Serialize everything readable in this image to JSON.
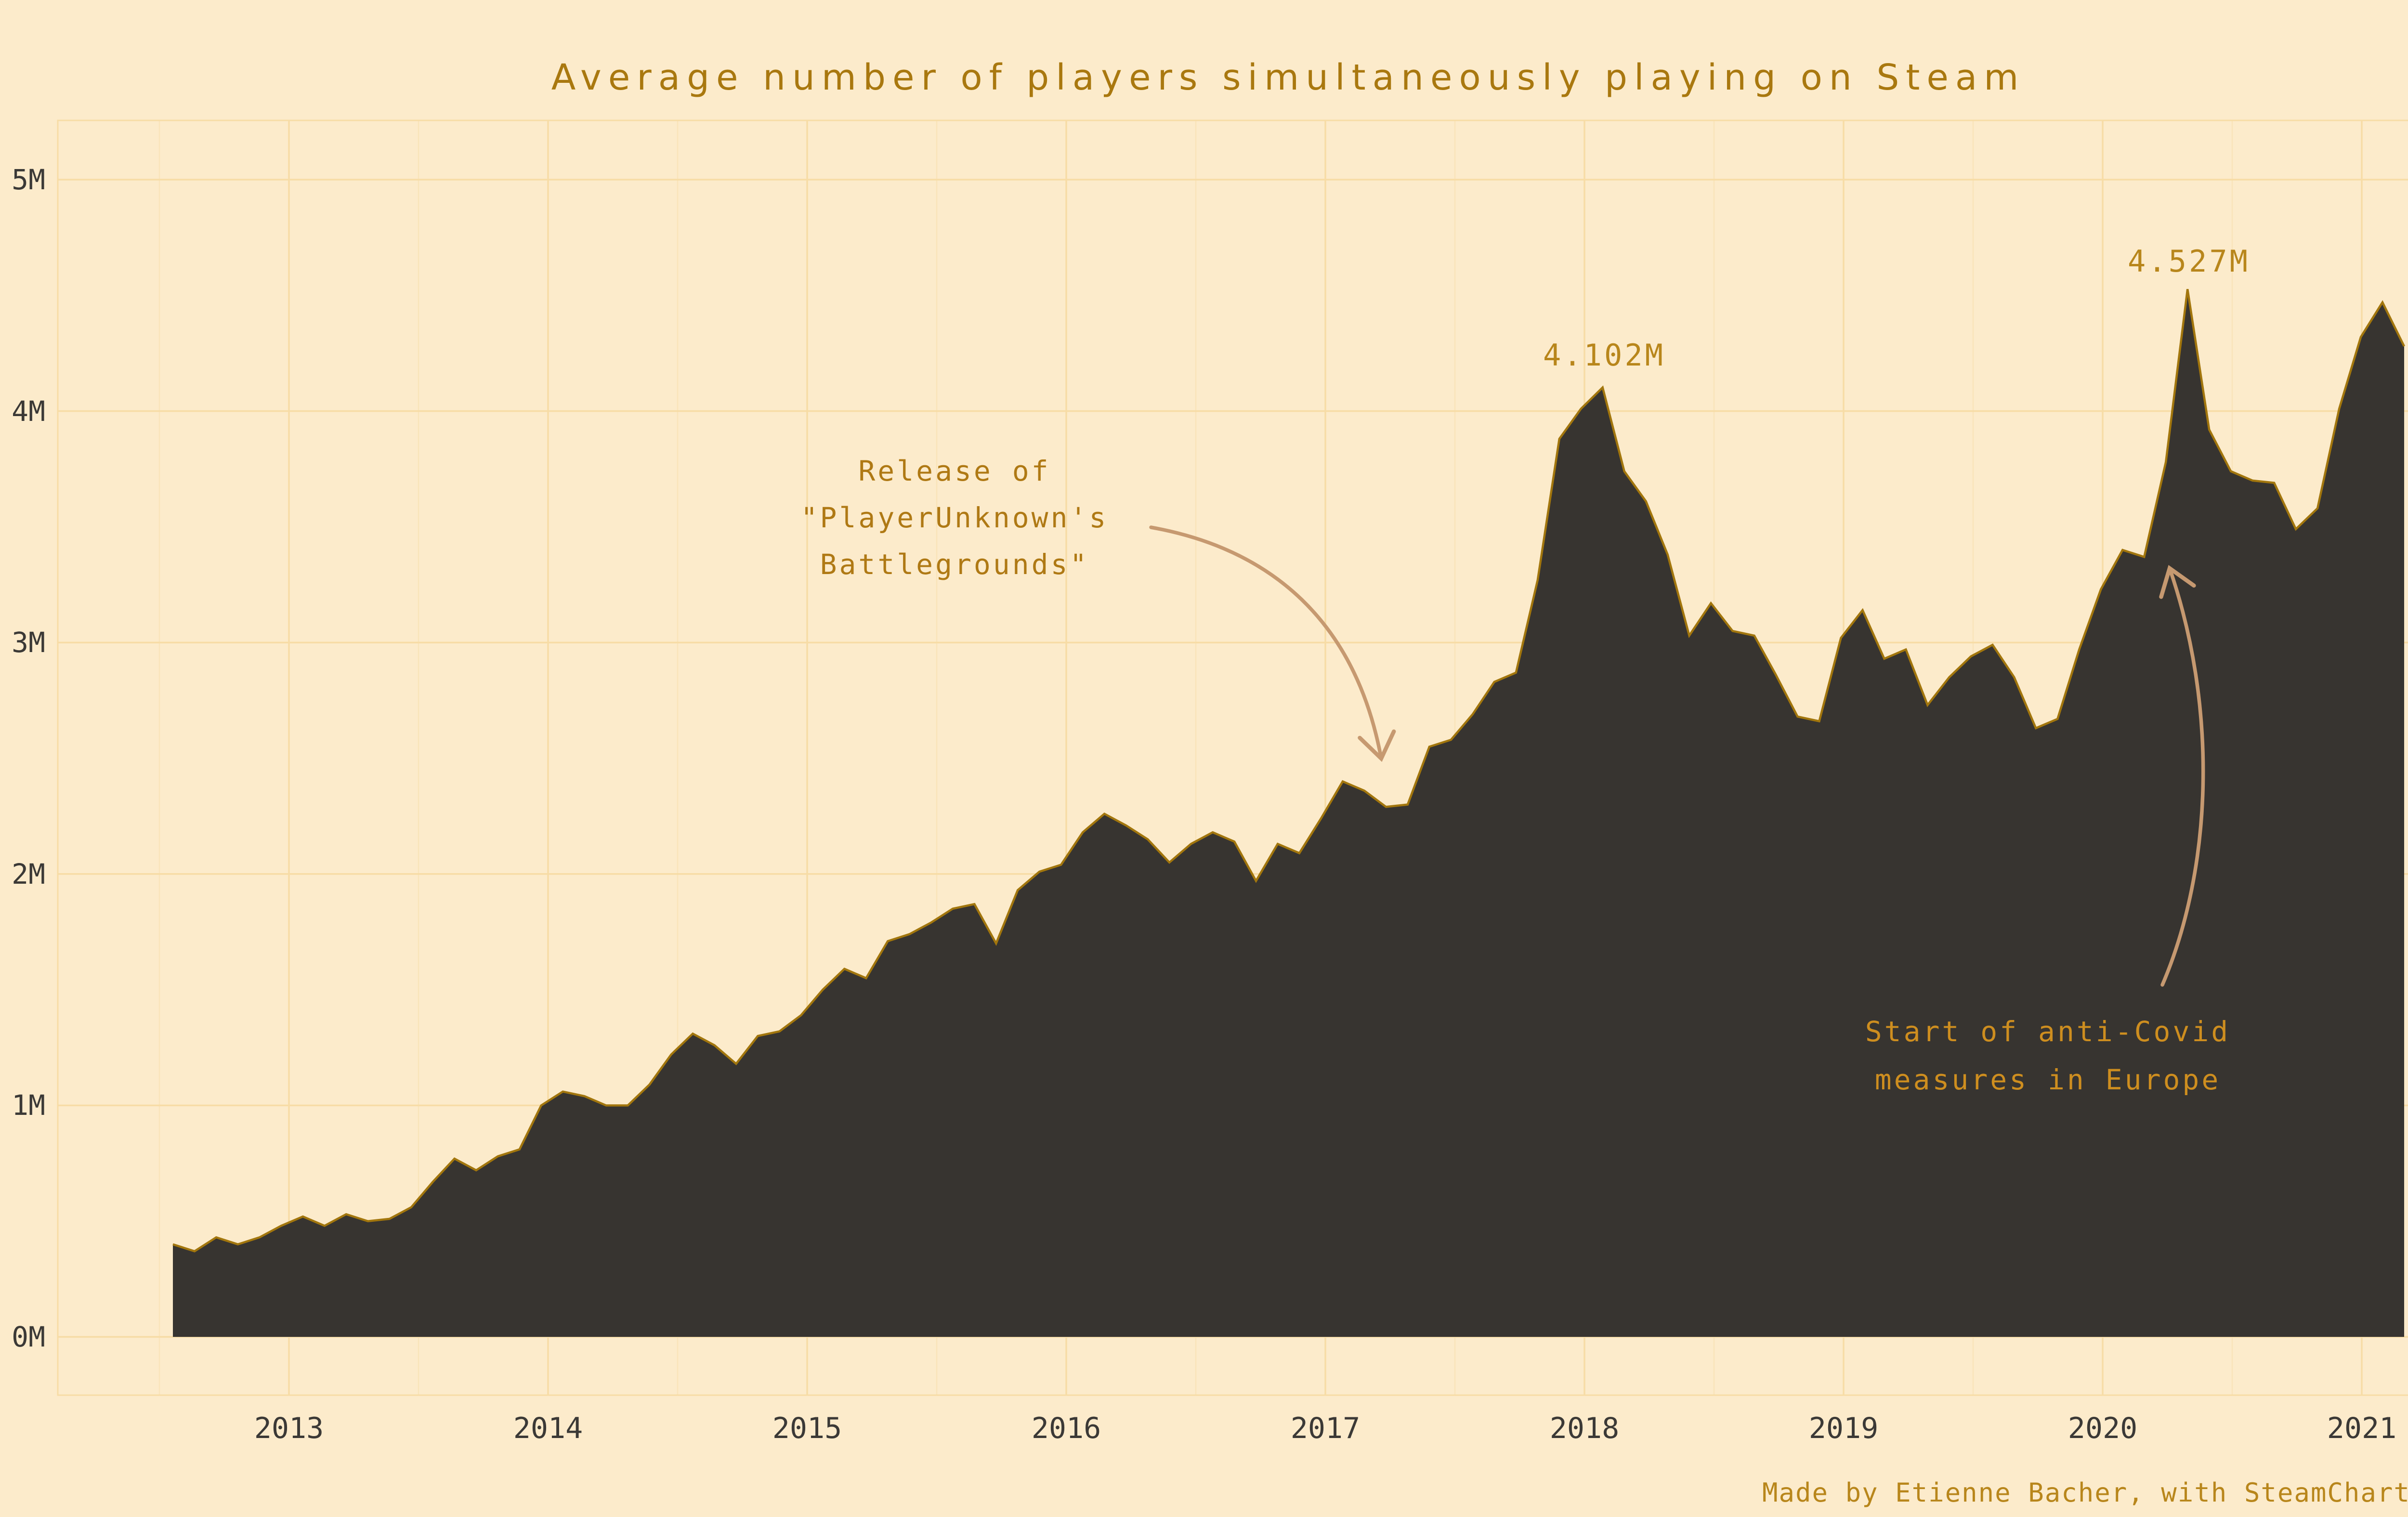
{
  "title": "Average number of players simultaneously playing on Steam",
  "credit": "Made by Etienne Bacher, with SteamCharts data",
  "colors": {
    "background": "#FCEBCB",
    "gridline": "#F7DCA6",
    "area_fill": "#373430",
    "area_outline": "#A2760D",
    "title_text": "#A9780F",
    "tick_text": "#3B3936",
    "gold_label": "#B8861B",
    "covid_label": "#CE8E1F",
    "arrow": "#C69970"
  },
  "annotations": {
    "pubg": {
      "lines": [
        "Release of",
        "\"PlayerUnknown's",
        "Battlegrounds\""
      ]
    },
    "covid": {
      "lines": [
        "Start of anti-Covid",
        "measures in Europe"
      ]
    },
    "peak_2018": "4.102M",
    "peak_2020": "4.527M"
  },
  "chart_data": {
    "type": "area",
    "title": "Average number of players simultaneously playing on Steam",
    "xlabel": "",
    "ylabel": "",
    "ylim": [
      0,
      5
    ],
    "grid": true,
    "legend_position": "none",
    "yticks": [
      "0M",
      "1M",
      "2M",
      "3M",
      "4M",
      "5M"
    ],
    "xticks": [
      "2013",
      "2014",
      "2015",
      "2016",
      "2017",
      "2018",
      "2019",
      "2020",
      "2021"
    ],
    "series_name": "Average simultaneous Steam players (millions)",
    "x": [
      "2012-07",
      "2012-08",
      "2012-09",
      "2012-10",
      "2012-11",
      "2012-12",
      "2013-01",
      "2013-02",
      "2013-03",
      "2013-04",
      "2013-05",
      "2013-06",
      "2013-07",
      "2013-08",
      "2013-09",
      "2013-10",
      "2013-11",
      "2013-12",
      "2014-01",
      "2014-02",
      "2014-03",
      "2014-04",
      "2014-05",
      "2014-06",
      "2014-07",
      "2014-08",
      "2014-09",
      "2014-10",
      "2014-11",
      "2014-12",
      "2015-01",
      "2015-02",
      "2015-03",
      "2015-04",
      "2015-05",
      "2015-06",
      "2015-07",
      "2015-08",
      "2015-09",
      "2015-10",
      "2015-11",
      "2015-12",
      "2016-01",
      "2016-02",
      "2016-03",
      "2016-04",
      "2016-05",
      "2016-06",
      "2016-07",
      "2016-08",
      "2016-09",
      "2016-10",
      "2016-11",
      "2016-12",
      "2017-01",
      "2017-02",
      "2017-03",
      "2017-04",
      "2017-05",
      "2017-06",
      "2017-07",
      "2017-08",
      "2017-09",
      "2017-10",
      "2017-11",
      "2017-12",
      "2018-01",
      "2018-02",
      "2018-03",
      "2018-04",
      "2018-05",
      "2018-06",
      "2018-07",
      "2018-08",
      "2018-09",
      "2018-10",
      "2018-11",
      "2018-12",
      "2019-01",
      "2019-02",
      "2019-03",
      "2019-04",
      "2019-05",
      "2019-06",
      "2019-07",
      "2019-08",
      "2019-09",
      "2019-10",
      "2019-11",
      "2019-12",
      "2020-01",
      "2020-02",
      "2020-03",
      "2020-04",
      "2020-05",
      "2020-06",
      "2020-07",
      "2020-08",
      "2020-09",
      "2020-10",
      "2020-11",
      "2020-12",
      "2021-01",
      "2021-02"
    ],
    "values": [
      0.4,
      0.37,
      0.43,
      0.4,
      0.43,
      0.48,
      0.52,
      0.48,
      0.53,
      0.5,
      0.51,
      0.56,
      0.67,
      0.77,
      0.72,
      0.78,
      0.81,
      1.0,
      1.06,
      1.04,
      1.0,
      1.0,
      1.09,
      1.22,
      1.31,
      1.26,
      1.18,
      1.3,
      1.32,
      1.39,
      1.5,
      1.59,
      1.55,
      1.71,
      1.74,
      1.79,
      1.85,
      1.87,
      1.7,
      1.93,
      2.01,
      2.04,
      2.18,
      2.26,
      2.21,
      2.15,
      2.05,
      2.13,
      2.18,
      2.14,
      1.97,
      2.13,
      2.09,
      2.24,
      2.4,
      2.36,
      2.29,
      2.3,
      2.55,
      2.58,
      2.69,
      2.83,
      2.87,
      3.27,
      3.88,
      4.01,
      4.102,
      3.74,
      3.61,
      3.38,
      3.03,
      3.17,
      3.05,
      3.03,
      2.86,
      2.68,
      2.66,
      3.02,
      3.14,
      2.93,
      2.97,
      2.73,
      2.85,
      2.94,
      2.99,
      2.85,
      2.63,
      2.67,
      2.97,
      3.23,
      3.4,
      3.37,
      3.78,
      4.527,
      3.92,
      3.74,
      3.7,
      3.69,
      3.49,
      3.58,
      4.01,
      4.32,
      4.47,
      4.28
    ],
    "annotated_points": [
      {
        "x": "2018-01",
        "value": 4.102,
        "label": "4.102M"
      },
      {
        "x": "2020-04",
        "value": 4.527,
        "label": "4.527M"
      }
    ]
  }
}
